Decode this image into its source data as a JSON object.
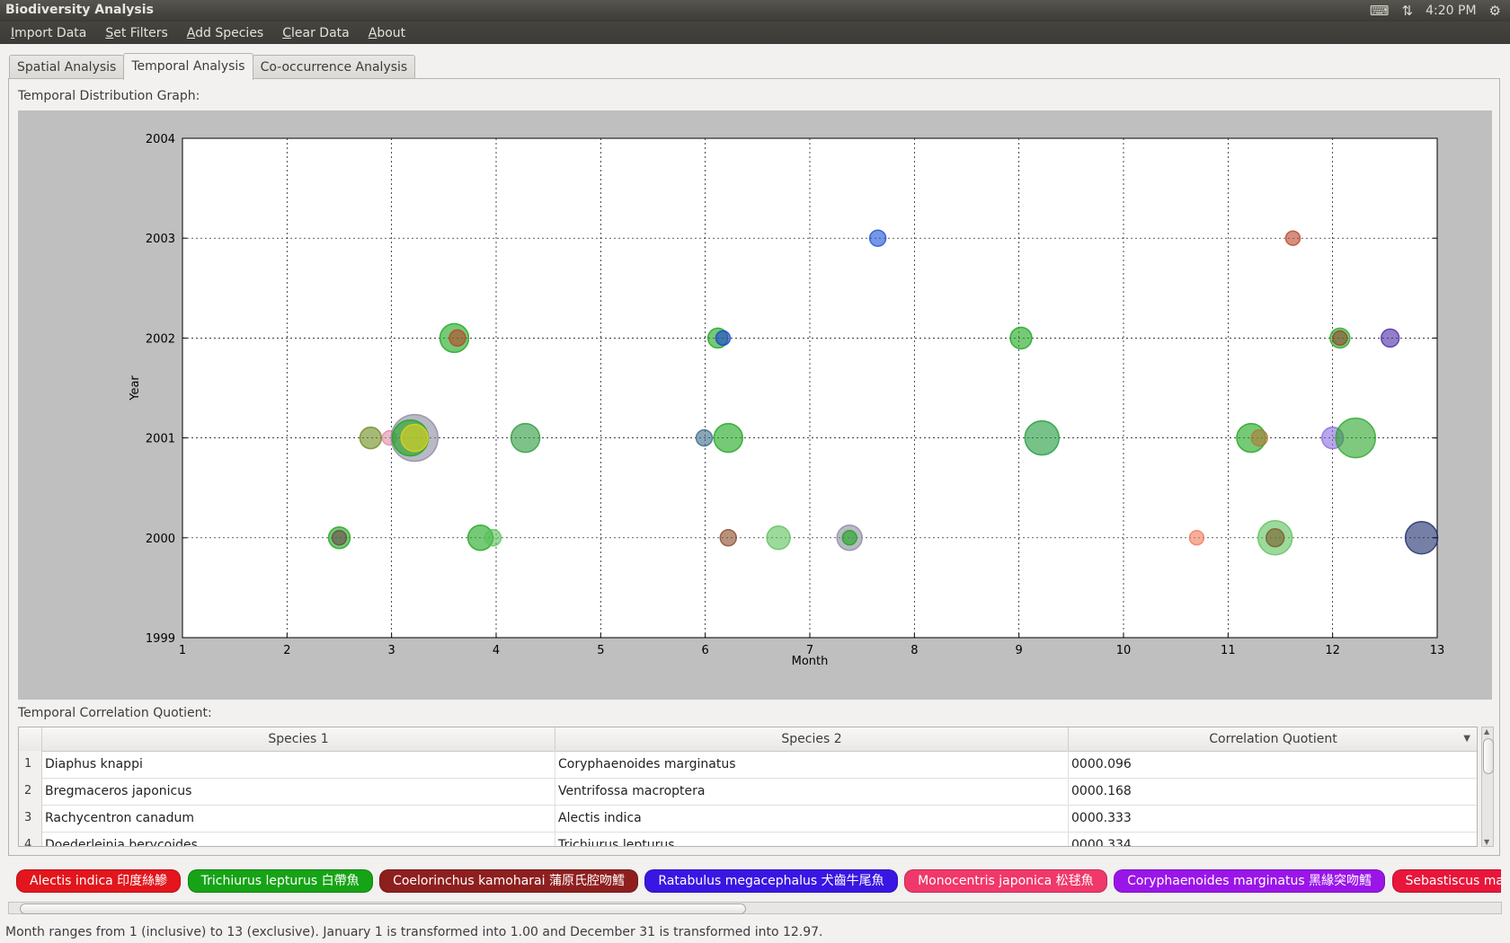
{
  "window": {
    "title": "Biodiversity Analysis",
    "clock": "4:20 PM"
  },
  "menu": [
    "Import Data",
    "Set Filters",
    "Add Species",
    "Clear Data",
    "About"
  ],
  "tabs": [
    {
      "label": "Spatial Analysis",
      "active": false
    },
    {
      "label": "Temporal Analysis",
      "active": true
    },
    {
      "label": "Co-occurrence Analysis",
      "active": false
    }
  ],
  "graph_label": "Temporal Distribution Graph:",
  "chart_data": {
    "type": "scatter",
    "title": "",
    "xlabel": "Month",
    "ylabel": "Year",
    "xlim": [
      1,
      13
    ],
    "ylim": [
      1999,
      2004
    ],
    "xticks": [
      1,
      2,
      3,
      4,
      5,
      6,
      7,
      8,
      9,
      10,
      11,
      12,
      13
    ],
    "yticks": [
      1999,
      2000,
      2001,
      2002,
      2003,
      2004
    ],
    "grid": true,
    "points": [
      {
        "x": 7.65,
        "y": 2003,
        "size": 9,
        "color": "#1a52d4"
      },
      {
        "x": 11.62,
        "y": 2003,
        "size": 8,
        "color": "#b9442a"
      },
      {
        "x": 3.6,
        "y": 2002,
        "size": 16,
        "color": "#1aa51a"
      },
      {
        "x": 3.63,
        "y": 2002,
        "size": 9,
        "color": "#b9442a"
      },
      {
        "x": 6.12,
        "y": 2002,
        "size": 11,
        "color": "#1aa51a"
      },
      {
        "x": 6.17,
        "y": 2002,
        "size": 8,
        "color": "#1a3fd4"
      },
      {
        "x": 9.02,
        "y": 2002,
        "size": 12,
        "color": "#1aa51a"
      },
      {
        "x": 12.07,
        "y": 2002,
        "size": 11,
        "color": "#2aa52a"
      },
      {
        "x": 12.07,
        "y": 2002,
        "size": 8,
        "color": "#8a4a2a"
      },
      {
        "x": 12.55,
        "y": 2002,
        "size": 10,
        "color": "#4a2aa5"
      },
      {
        "x": 2.8,
        "y": 2001,
        "size": 12,
        "color": "#6b8a1a"
      },
      {
        "x": 2.98,
        "y": 2001,
        "size": 8,
        "color": "#e08aa8"
      },
      {
        "x": 3.22,
        "y": 2001,
        "size": 26,
        "color": "#8a8aa0"
      },
      {
        "x": 3.18,
        "y": 2001,
        "size": 20,
        "color": "#1aa51a"
      },
      {
        "x": 3.22,
        "y": 2001,
        "size": 15,
        "color": "#e6d21a"
      },
      {
        "x": 4.28,
        "y": 2001,
        "size": 16,
        "color": "#2a9a3a"
      },
      {
        "x": 5.99,
        "y": 2001,
        "size": 9,
        "color": "#3a6a8a"
      },
      {
        "x": 6.22,
        "y": 2001,
        "size": 16,
        "color": "#1aa51a"
      },
      {
        "x": 9.22,
        "y": 2001,
        "size": 19,
        "color": "#1a9a3a"
      },
      {
        "x": 11.22,
        "y": 2001,
        "size": 16,
        "color": "#1aa51a"
      },
      {
        "x": 11.3,
        "y": 2001,
        "size": 9,
        "color": "#b07a3a"
      },
      {
        "x": 12.0,
        "y": 2001,
        "size": 12,
        "color": "#8a6ae0"
      },
      {
        "x": 12.22,
        "y": 2001,
        "size": 22,
        "color": "#2aa52a"
      },
      {
        "x": 2.5,
        "y": 2000,
        "size": 12,
        "color": "#1aa51a"
      },
      {
        "x": 2.5,
        "y": 2000,
        "size": 8,
        "color": "#6a4a4a"
      },
      {
        "x": 3.85,
        "y": 2000,
        "size": 14,
        "color": "#1aa51a"
      },
      {
        "x": 3.97,
        "y": 2000,
        "size": 9,
        "color": "#5ac25a"
      },
      {
        "x": 6.22,
        "y": 2000,
        "size": 9,
        "color": "#8a4a2a"
      },
      {
        "x": 6.7,
        "y": 2000,
        "size": 13,
        "color": "#5ac25a"
      },
      {
        "x": 7.38,
        "y": 2000,
        "size": 14,
        "color": "#8a8aa0"
      },
      {
        "x": 7.38,
        "y": 2000,
        "size": 8,
        "color": "#1aa51a"
      },
      {
        "x": 10.7,
        "y": 2000,
        "size": 8,
        "color": "#f07a5a"
      },
      {
        "x": 11.45,
        "y": 2000,
        "size": 19,
        "color": "#5ac25a"
      },
      {
        "x": 11.45,
        "y": 2000,
        "size": 10,
        "color": "#7a5a2a"
      },
      {
        "x": 12.85,
        "y": 2000,
        "size": 18,
        "color": "#1a2a6a"
      }
    ]
  },
  "correlation_label": "Temporal Correlation Quotient:",
  "table": {
    "headers": [
      "Species 1",
      "Species 2",
      "Correlation Quotient"
    ],
    "rows": [
      {
        "n": "1",
        "s1": "Diaphus knappi",
        "s2": "Coryphaenoides marginatus",
        "q": "0000.096"
      },
      {
        "n": "2",
        "s1": "Bregmaceros japonicus",
        "s2": "Ventrifossa macroptera",
        "q": "0000.168"
      },
      {
        "n": "3",
        "s1": "Rachycentron canadum",
        "s2": "Alectis indica",
        "q": "0000.333"
      },
      {
        "n": "4",
        "s1": "Doederleinia berycoides",
        "s2": "Trichiurus lepturus",
        "q": "0000.334"
      }
    ]
  },
  "species_chips": [
    {
      "label": "Alectis indica 印度絲鰺",
      "color": "#e2161c"
    },
    {
      "label": "Trichiurus lepturus 白帶魚",
      "color": "#16a316"
    },
    {
      "label": "Coelorinchus kamoharai 蒲原氏腔吻鱈",
      "color": "#8e1f1f"
    },
    {
      "label": "Ratabulus megacephalus 犬齒牛尾魚",
      "color": "#3a16e2"
    },
    {
      "label": "Monocentris japonica 松毬魚",
      "color": "#f0386a"
    },
    {
      "label": "Coryphaenoides marginatus 黑緣突吻鱈",
      "color": "#9a16e8"
    },
    {
      "label": "Sebastiscus marmoratus",
      "color": "#e8163a"
    }
  ],
  "status": "Month ranges from 1 (inclusive) to 13 (exclusive). January 1 is transformed into 1.00 and December 31 is transformed into 12.97."
}
